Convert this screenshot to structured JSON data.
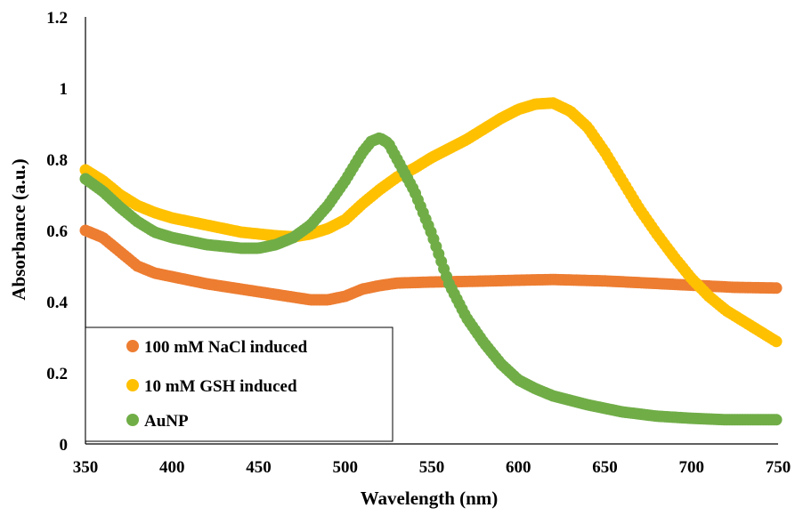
{
  "chart_data": {
    "type": "scatter",
    "title": "",
    "xlabel": "Wavelength (nm)",
    "ylabel": "Absorbance (a.u.)",
    "xlim": [
      350,
      750
    ],
    "ylim": [
      0,
      1.2
    ],
    "xticks": [
      "350",
      "400",
      "450",
      "500",
      "550",
      "600",
      "650",
      "700",
      "750"
    ],
    "yticks": [
      "0",
      "0.2",
      "0.4",
      "0.6",
      "0.8",
      "1",
      "1.2"
    ],
    "grid": false,
    "legend_position": "bottom-left",
    "series": [
      {
        "name": "100 mM NaCl induced",
        "color": "#ED7D31",
        "points": [
          [
            350,
            0.6
          ],
          [
            360,
            0.58
          ],
          [
            370,
            0.54
          ],
          [
            380,
            0.5
          ],
          [
            390,
            0.48
          ],
          [
            400,
            0.47
          ],
          [
            420,
            0.45
          ],
          [
            440,
            0.435
          ],
          [
            460,
            0.42
          ],
          [
            480,
            0.405
          ],
          [
            490,
            0.405
          ],
          [
            500,
            0.415
          ],
          [
            510,
            0.435
          ],
          [
            520,
            0.445
          ],
          [
            530,
            0.452
          ],
          [
            550,
            0.455
          ],
          [
            575,
            0.457
          ],
          [
            600,
            0.46
          ],
          [
            620,
            0.462
          ],
          [
            650,
            0.458
          ],
          [
            675,
            0.452
          ],
          [
            700,
            0.446
          ],
          [
            725,
            0.44
          ],
          [
            750,
            0.438
          ]
        ]
      },
      {
        "name": "10 mM GSH induced",
        "color": "#FFC000",
        "points": [
          [
            350,
            0.77
          ],
          [
            360,
            0.74
          ],
          [
            370,
            0.7
          ],
          [
            380,
            0.67
          ],
          [
            390,
            0.65
          ],
          [
            400,
            0.635
          ],
          [
            420,
            0.615
          ],
          [
            440,
            0.595
          ],
          [
            460,
            0.585
          ],
          [
            470,
            0.582
          ],
          [
            480,
            0.59
          ],
          [
            490,
            0.605
          ],
          [
            500,
            0.63
          ],
          [
            510,
            0.675
          ],
          [
            520,
            0.715
          ],
          [
            530,
            0.75
          ],
          [
            540,
            0.775
          ],
          [
            550,
            0.805
          ],
          [
            560,
            0.83
          ],
          [
            570,
            0.855
          ],
          [
            580,
            0.885
          ],
          [
            590,
            0.915
          ],
          [
            600,
            0.94
          ],
          [
            610,
            0.955
          ],
          [
            620,
            0.958
          ],
          [
            630,
            0.935
          ],
          [
            640,
            0.89
          ],
          [
            650,
            0.82
          ],
          [
            660,
            0.74
          ],
          [
            670,
            0.66
          ],
          [
            680,
            0.59
          ],
          [
            690,
            0.525
          ],
          [
            700,
            0.465
          ],
          [
            710,
            0.415
          ],
          [
            720,
            0.375
          ],
          [
            730,
            0.345
          ],
          [
            740,
            0.315
          ],
          [
            750,
            0.285
          ]
        ]
      },
      {
        "name": "AuNP",
        "color": "#70AD47",
        "points": [
          [
            350,
            0.745
          ],
          [
            360,
            0.71
          ],
          [
            370,
            0.665
          ],
          [
            380,
            0.625
          ],
          [
            390,
            0.595
          ],
          [
            400,
            0.58
          ],
          [
            420,
            0.56
          ],
          [
            440,
            0.55
          ],
          [
            450,
            0.55
          ],
          [
            460,
            0.56
          ],
          [
            470,
            0.58
          ],
          [
            480,
            0.615
          ],
          [
            490,
            0.67
          ],
          [
            500,
            0.74
          ],
          [
            510,
            0.82
          ],
          [
            515,
            0.85
          ],
          [
            520,
            0.86
          ],
          [
            525,
            0.845
          ],
          [
            530,
            0.8
          ],
          [
            540,
            0.71
          ],
          [
            550,
            0.59
          ],
          [
            560,
            0.45
          ],
          [
            570,
            0.355
          ],
          [
            580,
            0.285
          ],
          [
            590,
            0.225
          ],
          [
            600,
            0.18
          ],
          [
            610,
            0.155
          ],
          [
            620,
            0.135
          ],
          [
            640,
            0.11
          ],
          [
            660,
            0.09
          ],
          [
            680,
            0.078
          ],
          [
            700,
            0.072
          ],
          [
            720,
            0.068
          ],
          [
            750,
            0.068
          ]
        ]
      }
    ]
  }
}
